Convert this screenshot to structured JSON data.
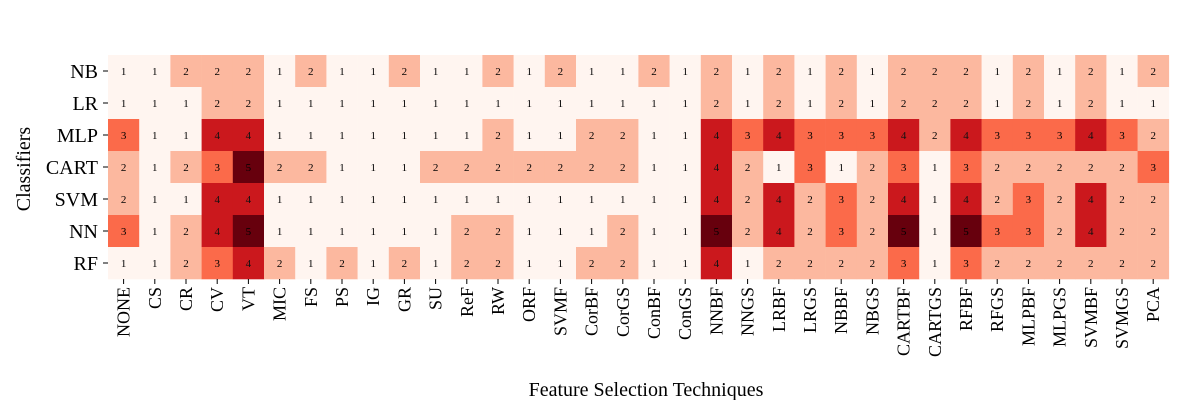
{
  "chart_data": {
    "type": "heatmap",
    "xlabel": "Feature Selection Techniques",
    "ylabel": "Classifiers",
    "x_categories": [
      "NONE",
      "CS",
      "CR",
      "CV",
      "VT",
      "MIC",
      "FS",
      "PS",
      "IG",
      "GR",
      "SU",
      "ReF",
      "RW",
      "ORF",
      "SVMF",
      "CorBF",
      "CorGS",
      "ConBF",
      "ConGS",
      "NNBF",
      "NNGS",
      "LRBF",
      "LRGS",
      "NBBF",
      "NBGS",
      "CARTBF",
      "CARTGS",
      "RFBF",
      "RFGS",
      "MLPBF",
      "MLPGS",
      "SVMBF",
      "SVMGS",
      "PCA"
    ],
    "y_categories": [
      "NB",
      "LR",
      "MLP",
      "CART",
      "SVM",
      "NN",
      "RF"
    ],
    "values": [
      [
        1,
        1,
        2,
        2,
        2,
        1,
        2,
        1,
        1,
        2,
        1,
        1,
        2,
        1,
        2,
        1,
        1,
        2,
        1,
        2,
        1,
        2,
        1,
        2,
        1,
        2,
        2,
        2,
        1,
        2,
        1,
        2,
        1,
        2
      ],
      [
        1,
        1,
        1,
        2,
        2,
        1,
        1,
        1,
        1,
        1,
        1,
        1,
        1,
        1,
        1,
        1,
        1,
        1,
        1,
        2,
        1,
        2,
        1,
        2,
        1,
        2,
        2,
        2,
        1,
        2,
        1,
        2,
        1,
        1
      ],
      [
        3,
        1,
        1,
        4,
        4,
        1,
        1,
        1,
        1,
        1,
        1,
        1,
        2,
        1,
        1,
        2,
        2,
        1,
        1,
        4,
        3,
        4,
        3,
        3,
        3,
        4,
        2,
        4,
        3,
        3,
        3,
        4,
        3,
        2
      ],
      [
        2,
        1,
        2,
        3,
        5,
        2,
        2,
        1,
        1,
        1,
        2,
        2,
        2,
        2,
        2,
        2,
        2,
        1,
        1,
        4,
        2,
        1,
        3,
        1,
        2,
        3,
        1,
        3,
        2,
        2,
        2,
        2,
        2,
        3
      ],
      [
        2,
        1,
        1,
        4,
        4,
        1,
        1,
        1,
        1,
        1,
        1,
        1,
        1,
        1,
        1,
        1,
        1,
        1,
        1,
        4,
        2,
        4,
        2,
        3,
        2,
        4,
        1,
        4,
        2,
        3,
        2,
        4,
        2,
        2
      ],
      [
        3,
        1,
        2,
        4,
        5,
        1,
        1,
        1,
        1,
        1,
        1,
        2,
        2,
        1,
        1,
        1,
        2,
        1,
        1,
        5,
        2,
        4,
        2,
        3,
        2,
        5,
        1,
        5,
        3,
        3,
        2,
        4,
        2,
        2
      ],
      [
        1,
        1,
        2,
        3,
        4,
        2,
        1,
        2,
        1,
        2,
        1,
        2,
        2,
        1,
        1,
        2,
        2,
        1,
        1,
        4,
        1,
        2,
        2,
        2,
        2,
        3,
        1,
        3,
        2,
        2,
        2,
        2,
        2,
        2
      ]
    ],
    "colormap": "Reds",
    "color_scale": {
      "1": "#fff5f0",
      "2": "#fcb89f",
      "3": "#fb6a4a",
      "4": "#cb181d",
      "5": "#67000d"
    },
    "colorbar": false,
    "grid": false
  }
}
